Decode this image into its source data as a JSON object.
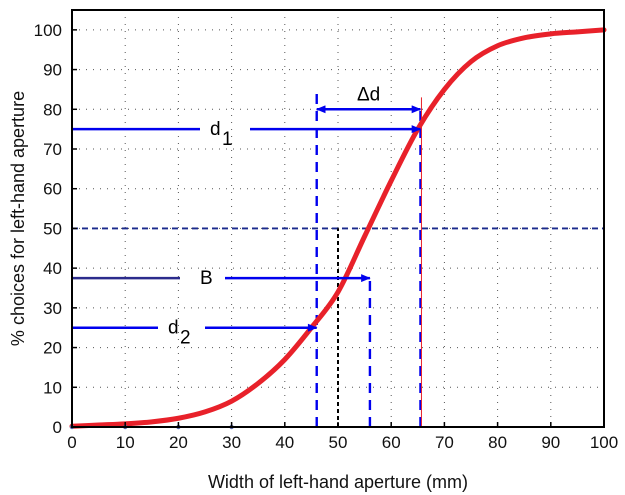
{
  "chart_data": {
    "type": "line",
    "xlabel": "Width of left-hand aperture (mm)",
    "ylabel": "% choices for left-hand aperture",
    "xlim": [
      0,
      100
    ],
    "ylim": [
      0,
      105
    ],
    "x_ticks": [
      0,
      10,
      20,
      30,
      40,
      50,
      60,
      70,
      80,
      90,
      100
    ],
    "y_ticks": [
      0,
      10,
      20,
      30,
      40,
      50,
      60,
      70,
      80,
      90,
      100
    ],
    "grid": true,
    "series": [
      {
        "color": "#e8212a",
        "x": [
          0,
          5,
          10,
          15,
          20,
          25,
          30,
          35,
          40,
          45,
          50,
          55,
          60,
          65,
          70,
          75,
          80,
          85,
          90,
          95,
          100
        ],
        "y": [
          0.2,
          0.5,
          0.8,
          1.3,
          2.2,
          3.8,
          6.5,
          11,
          17,
          25,
          34,
          48,
          62,
          75,
          85,
          92,
          96,
          98,
          99,
          99.5,
          100
        ]
      }
    ],
    "reference_line": {
      "y": 50,
      "color": "#1a2a8c"
    },
    "annotations": [
      {
        "id": "d1",
        "text": "d",
        "sub": "1",
        "y": 75,
        "x_to": 65.5,
        "color": "#0000ee"
      },
      {
        "id": "d2",
        "text": "d",
        "sub": "2",
        "y": 25,
        "x_to": 46,
        "color": "#0000ee"
      },
      {
        "id": "B",
        "text": "B",
        "y": 37.5,
        "x_to": 56,
        "color": "#0000ee"
      },
      {
        "id": "delta-d",
        "text": "Δd",
        "y": 80,
        "x_from": 46,
        "x_to": 65.5,
        "color": "#0000ee"
      }
    ],
    "vertical_markers": [
      {
        "x": 46,
        "y_top": 85,
        "color": "#0000ee",
        "dash": "dashed"
      },
      {
        "x": 65.5,
        "y_top": 80,
        "color": "#0000ee",
        "dash": "dashed"
      },
      {
        "x": 56,
        "y_top": 37.5,
        "color": "#0000ee",
        "dash": "dashed"
      },
      {
        "x": 50,
        "y_top": 50,
        "color": "#000000",
        "dash": "dashed"
      }
    ]
  }
}
